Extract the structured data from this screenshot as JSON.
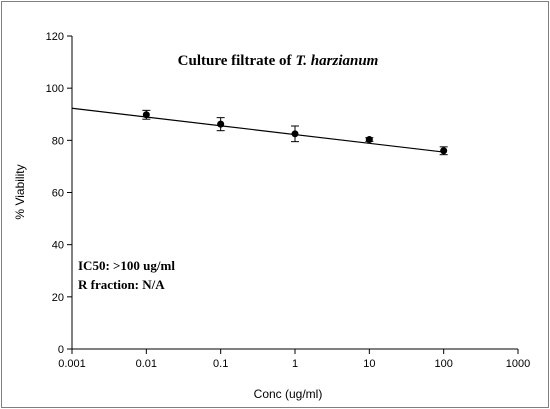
{
  "chart_data": {
    "type": "scatter",
    "title": "Culture filtrate of",
    "title_species": "T. harzianum",
    "xlabel": "Conc (ug/ml)",
    "ylabel": "% Viability",
    "x_scale": "log",
    "xlim": [
      0.001,
      1000
    ],
    "ylim": [
      0,
      120
    ],
    "x_ticks": [
      0.001,
      0.01,
      0.1,
      1,
      10,
      100,
      1000
    ],
    "x_tick_labels": [
      "0.001",
      "0.01",
      "0.1",
      "1",
      "10",
      "100",
      "1000"
    ],
    "y_ticks": [
      0,
      20,
      40,
      60,
      80,
      100,
      120
    ],
    "y_tick_labels": [
      "0",
      "20",
      "40",
      "60",
      "80",
      "100",
      "120"
    ],
    "grid": false,
    "series": [
      {
        "x": [
          0.01,
          0.1,
          1,
          10,
          100
        ],
        "y": [
          89.8,
          86.2,
          82.5,
          80.3,
          76.0
        ],
        "error": [
          1.7,
          2.5,
          3.0,
          0.7,
          1.5
        ],
        "color": "#000000"
      }
    ],
    "trendline": {
      "x": [
        0.001,
        100
      ],
      "y": [
        92.3,
        75.5
      ]
    },
    "annotations": [
      "IC50: >100 ug/ml",
      "R fraction: N/A"
    ]
  }
}
